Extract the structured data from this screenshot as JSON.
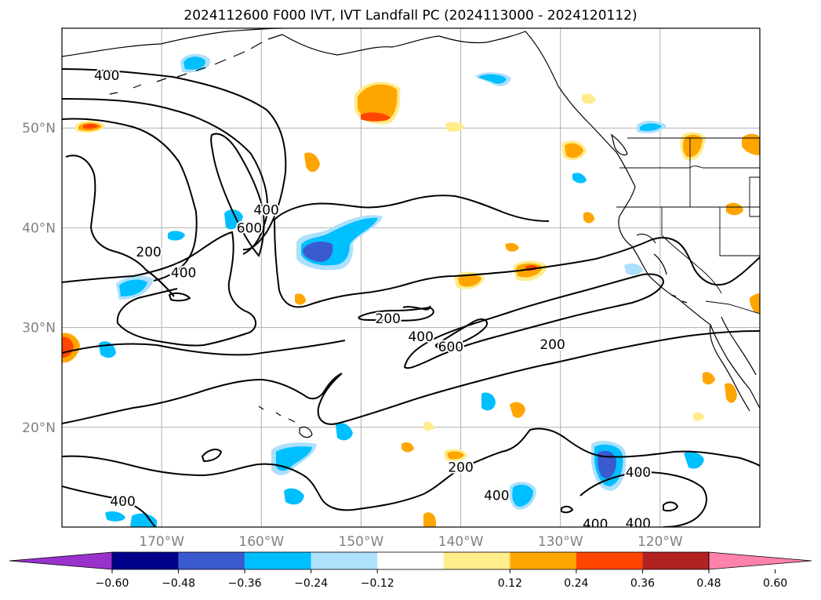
{
  "title": "2024112600 F000 IVT, IVT Landfall PC (2024113000 - 2024120112)",
  "map": {
    "lon_range": [
      -180,
      -110
    ],
    "lat_range": [
      10,
      60
    ],
    "lat_gridlines": [
      20,
      30,
      40,
      50
    ],
    "lon_gridlines": [
      -170,
      -160,
      -150,
      -140,
      -130,
      -120
    ],
    "lat_labels": [
      "20°N",
      "30°N",
      "40°N",
      "50°N"
    ],
    "lon_labels": [
      "170°W",
      "160°W",
      "150°W",
      "140°W",
      "130°W",
      "120°W"
    ],
    "contour_levels": [
      200,
      400,
      600
    ],
    "contour_labels": [
      {
        "text": "400",
        "lon": -175.5,
        "lat": 55.3
      },
      {
        "text": "400",
        "lon": -159.5,
        "lat": 41.8
      },
      {
        "text": "600",
        "lon": -161.2,
        "lat": 40.0
      },
      {
        "text": "200",
        "lon": -171.3,
        "lat": 37.6
      },
      {
        "text": "400",
        "lon": -167.8,
        "lat": 35.5
      },
      {
        "text": "200",
        "lon": -147.3,
        "lat": 30.9
      },
      {
        "text": "400",
        "lon": -144.0,
        "lat": 29.1
      },
      {
        "text": "600",
        "lon": -141.0,
        "lat": 28.1
      },
      {
        "text": "200",
        "lon": -130.8,
        "lat": 28.3
      },
      {
        "text": "200",
        "lon": -140.0,
        "lat": 16.0
      },
      {
        "text": "400",
        "lon": -136.4,
        "lat": 13.2
      },
      {
        "text": "400",
        "lon": -122.2,
        "lat": 15.5
      },
      {
        "text": "400",
        "lon": -126.5,
        "lat": 10.3
      },
      {
        "text": "400",
        "lon": -122.2,
        "lat": 10.4
      },
      {
        "text": "400",
        "lon": -173.9,
        "lat": 12.6
      }
    ]
  },
  "colorbar": {
    "ticks": [
      "−0.60",
      "−0.48",
      "−0.36",
      "−0.24",
      "−0.12",
      "0.12",
      "0.24",
      "0.36",
      "0.48",
      "0.60"
    ],
    "colors": [
      "#9932cc",
      "#00008b",
      "#3a5bcf",
      "#00bfff",
      "#ade0fb",
      "#ffffff",
      "#ffec8b",
      "#ffa500",
      "#ff4500",
      "#b22222",
      "#ff82ab"
    ]
  }
}
